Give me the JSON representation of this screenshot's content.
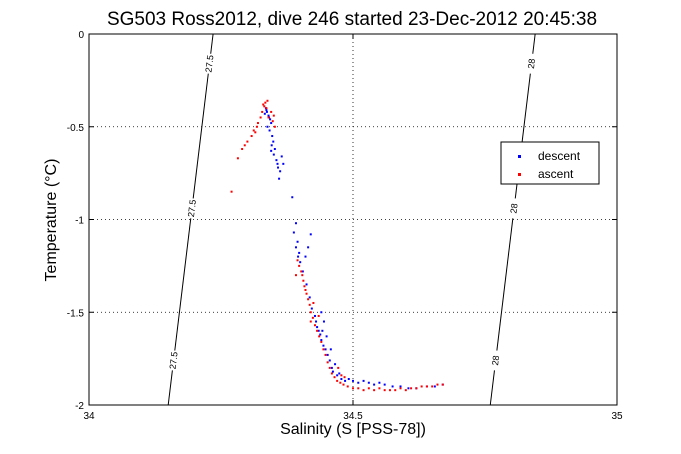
{
  "chart_data": {
    "type": "scatter",
    "title": "SG503 Ross2012, dive 246 started 23-Dec-2012 20:45:38",
    "xlabel": "Salinity (S [PSS-78])",
    "ylabel": "Temperature (°C)",
    "xlim": [
      34,
      35
    ],
    "ylim": [
      -2,
      0
    ],
    "y_reversed": true,
    "x_ticks": [
      34,
      34.5,
      35
    ],
    "x_tick_labels": [
      "34",
      "34.5",
      "35"
    ],
    "y_ticks": [
      0,
      -0.5,
      -1,
      -1.5,
      -2
    ],
    "y_tick_labels": [
      "0",
      "-0.5",
      "-1",
      "-1.5",
      "-2"
    ],
    "grid": true,
    "legend_position": "right",
    "series": [
      {
        "name": "descent",
        "color": "#0000ff",
        "points": [
          [
            34.335,
            -0.4
          ],
          [
            34.337,
            -0.42
          ],
          [
            34.34,
            -0.44
          ],
          [
            34.343,
            -0.46
          ],
          [
            34.333,
            -0.43
          ],
          [
            34.345,
            -0.48
          ],
          [
            34.338,
            -0.5
          ],
          [
            34.342,
            -0.52
          ],
          [
            34.336,
            -0.41
          ],
          [
            34.341,
            -0.45
          ],
          [
            34.347,
            -0.55
          ],
          [
            34.349,
            -0.58
          ],
          [
            34.346,
            -0.6
          ],
          [
            34.352,
            -0.62
          ],
          [
            34.35,
            -0.65
          ],
          [
            34.355,
            -0.68
          ],
          [
            34.358,
            -0.72
          ],
          [
            34.357,
            -0.7
          ],
          [
            34.362,
            -0.74
          ],
          [
            34.365,
            -0.66
          ],
          [
            34.368,
            -0.7
          ],
          [
            34.345,
            -0.63
          ],
          [
            34.36,
            -0.78
          ],
          [
            34.385,
            -0.88
          ],
          [
            34.392,
            -1.02
          ],
          [
            34.388,
            -1.07
          ],
          [
            34.395,
            -1.12
          ],
          [
            34.392,
            -1.15
          ],
          [
            34.398,
            -1.18
          ],
          [
            34.396,
            -1.2
          ],
          [
            34.4,
            -1.23
          ],
          [
            34.42,
            -1.08
          ],
          [
            34.415,
            -1.15
          ],
          [
            34.41,
            -1.2
          ],
          [
            34.405,
            -1.28
          ],
          [
            34.412,
            -1.35
          ],
          [
            34.418,
            -1.42
          ],
          [
            34.422,
            -1.48
          ],
          [
            34.428,
            -1.52
          ],
          [
            34.43,
            -1.55
          ],
          [
            34.432,
            -1.58
          ],
          [
            34.435,
            -1.6
          ],
          [
            34.438,
            -1.62
          ],
          [
            34.44,
            -1.65
          ],
          [
            34.444,
            -1.68
          ],
          [
            34.448,
            -1.7
          ],
          [
            34.452,
            -1.73
          ],
          [
            34.456,
            -1.76
          ],
          [
            34.46,
            -1.8
          ],
          [
            34.462,
            -1.82
          ],
          [
            34.47,
            -1.84
          ],
          [
            34.478,
            -1.86
          ],
          [
            34.485,
            -1.87
          ],
          [
            34.492,
            -1.86
          ],
          [
            34.5,
            -1.87
          ],
          [
            34.51,
            -1.88
          ],
          [
            34.52,
            -1.87
          ],
          [
            34.53,
            -1.88
          ],
          [
            34.54,
            -1.89
          ],
          [
            34.55,
            -1.88
          ],
          [
            34.56,
            -1.89
          ],
          [
            34.575,
            -1.9
          ],
          [
            34.59,
            -1.9
          ],
          [
            34.605,
            -1.91
          ],
          [
            34.62,
            -1.91
          ],
          [
            34.64,
            -1.9
          ],
          [
            34.655,
            -1.9
          ],
          [
            34.67,
            -1.89
          ],
          [
            34.44,
            -1.5
          ],
          [
            34.445,
            -1.55
          ],
          [
            34.442,
            -1.6
          ],
          [
            34.45,
            -1.63
          ],
          [
            34.458,
            -1.7
          ],
          [
            34.466,
            -1.78
          ],
          [
            34.474,
            -1.83
          ]
        ]
      },
      {
        "name": "ascent",
        "color": "#ff0000",
        "points": [
          [
            34.33,
            -0.38
          ],
          [
            34.334,
            -0.37
          ],
          [
            34.338,
            -0.36
          ],
          [
            34.332,
            -0.39
          ],
          [
            34.336,
            -0.4
          ],
          [
            34.328,
            -0.42
          ],
          [
            34.325,
            -0.45
          ],
          [
            34.32,
            -0.48
          ],
          [
            34.318,
            -0.5
          ],
          [
            34.315,
            -0.53
          ],
          [
            34.312,
            -0.52
          ],
          [
            34.308,
            -0.55
          ],
          [
            34.3,
            -0.58
          ],
          [
            34.295,
            -0.6
          ],
          [
            34.29,
            -0.62
          ],
          [
            34.282,
            -0.67
          ],
          [
            34.27,
            -0.85
          ],
          [
            34.34,
            -0.45
          ],
          [
            34.345,
            -0.42
          ],
          [
            34.348,
            -0.47
          ],
          [
            34.35,
            -0.44
          ],
          [
            34.352,
            -0.5
          ],
          [
            34.395,
            -1.22
          ],
          [
            34.398,
            -1.25
          ],
          [
            34.402,
            -1.28
          ],
          [
            34.404,
            -1.3
          ],
          [
            34.406,
            -1.33
          ],
          [
            34.408,
            -1.36
          ],
          [
            34.41,
            -1.38
          ],
          [
            34.412,
            -1.4
          ],
          [
            34.415,
            -1.43
          ],
          [
            34.418,
            -1.46
          ],
          [
            34.42,
            -1.5
          ],
          [
            34.424,
            -1.53
          ],
          [
            34.428,
            -1.57
          ],
          [
            34.432,
            -1.6
          ],
          [
            34.436,
            -1.63
          ],
          [
            34.44,
            -1.66
          ],
          [
            34.444,
            -1.7
          ],
          [
            34.448,
            -1.73
          ],
          [
            34.452,
            -1.77
          ],
          [
            34.456,
            -1.8
          ],
          [
            34.46,
            -1.83
          ],
          [
            34.465,
            -1.85
          ],
          [
            34.47,
            -1.87
          ],
          [
            34.476,
            -1.88
          ],
          [
            34.482,
            -1.89
          ],
          [
            34.49,
            -1.9
          ],
          [
            34.5,
            -1.91
          ],
          [
            34.51,
            -1.91
          ],
          [
            34.52,
            -1.92
          ],
          [
            34.53,
            -1.91
          ],
          [
            34.54,
            -1.92
          ],
          [
            34.55,
            -1.91
          ],
          [
            34.56,
            -1.92
          ],
          [
            34.57,
            -1.92
          ],
          [
            34.58,
            -1.92
          ],
          [
            34.59,
            -1.91
          ],
          [
            34.6,
            -1.92
          ],
          [
            34.61,
            -1.91
          ],
          [
            34.62,
            -1.91
          ],
          [
            34.63,
            -1.9
          ],
          [
            34.64,
            -1.9
          ],
          [
            34.65,
            -1.9
          ],
          [
            34.66,
            -1.89
          ],
          [
            34.67,
            -1.89
          ],
          [
            34.472,
            -1.8
          ],
          [
            34.478,
            -1.84
          ],
          [
            34.484,
            -1.85
          ],
          [
            34.42,
            -1.55
          ],
          [
            34.425,
            -1.45
          ],
          [
            34.435,
            -1.52
          ],
          [
            34.392,
            -1.3
          ]
        ]
      }
    ],
    "contours": [
      {
        "label": "27.5",
        "points": [
          [
            34.15,
            -2.0
          ],
          [
            34.235,
            0.0
          ]
        ]
      },
      {
        "label": "28",
        "points": [
          [
            34.76,
            -2.0
          ],
          [
            34.845,
            0.0
          ]
        ]
      }
    ]
  }
}
